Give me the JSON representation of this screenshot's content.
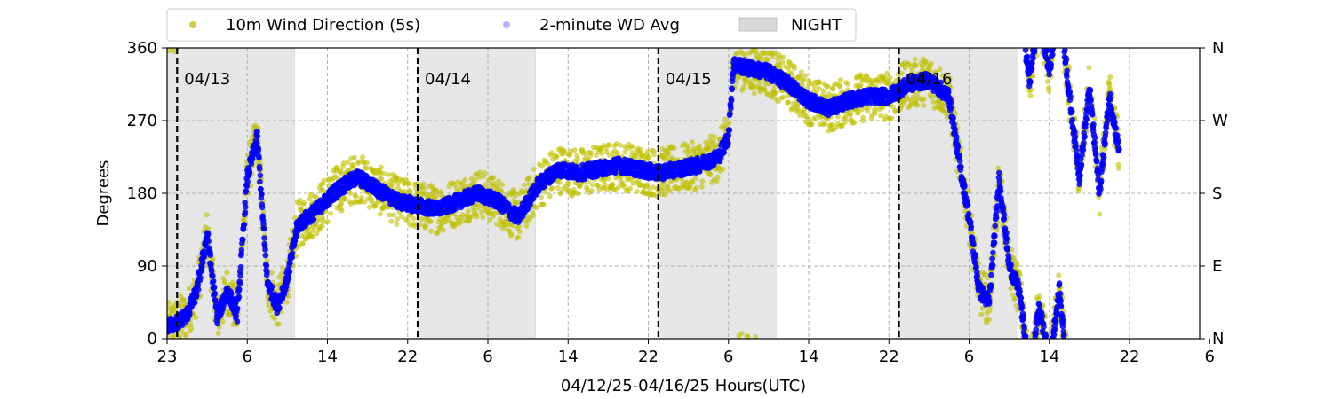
{
  "chart_data": {
    "type": "scatter",
    "title": "",
    "xlabel": "04/12/25-04/16/25  Hours(UTC)",
    "ylabel": "Degrees",
    "x_range_hours_utc": [
      "04/12 23:00",
      "04/17 06:00"
    ],
    "x_tick_labels": [
      "23",
      "6",
      "14",
      "22",
      "6",
      "14",
      "22",
      "6",
      "14",
      "22",
      "6",
      "14",
      "22",
      "6"
    ],
    "ylim": [
      0,
      360
    ],
    "y_ticks": [
      0,
      90,
      180,
      270,
      360
    ],
    "y_tick_labels": [
      "0",
      "90",
      "180",
      "270",
      "360"
    ],
    "y2_tick_labels": [
      "N",
      "E",
      "S",
      "W",
      "N"
    ],
    "grid": true,
    "legend_position": "top-left, above plot",
    "legend": [
      {
        "label": "10m Wind Direction (5s)",
        "marker": "dot",
        "color": "#bfbf00"
      },
      {
        "label": "2-minute WD Avg",
        "marker": "dot",
        "color": "#0000ff"
      },
      {
        "label": "NIGHT",
        "marker": "box",
        "color": "#d9d9d9"
      }
    ],
    "day_separators": [
      {
        "time": "04/13 00:00",
        "label": "04/13"
      },
      {
        "time": "04/14 00:00",
        "label": "04/14"
      },
      {
        "time": "04/15 00:00",
        "label": "04/15"
      },
      {
        "time": "04/16 00:00",
        "label": "04/16"
      }
    ],
    "night_periods": [
      {
        "start": "04/12 23:00",
        "end": "04/13 11:45"
      },
      {
        "start": "04/14 00:00",
        "end": "04/14 11:45"
      },
      {
        "start": "04/15 00:00",
        "end": "04/15 11:45"
      },
      {
        "start": "04/16 00:00",
        "end": "04/16 11:45"
      }
    ],
    "series": [
      {
        "name": "2-minute WD Avg",
        "color": "#0000ff",
        "points": [
          [
            "04/12 23:00",
            15
          ],
          [
            "04/13 00:00",
            20
          ],
          [
            "04/13 01:00",
            30
          ],
          [
            "04/13 02:00",
            60
          ],
          [
            "04/13 03:00",
            130
          ],
          [
            "04/13 04:00",
            25
          ],
          [
            "04/13 05:00",
            60
          ],
          [
            "04/13 06:00",
            30
          ],
          [
            "04/13 07:00",
            200
          ],
          [
            "04/13 08:00",
            250
          ],
          [
            "04/13 09:00",
            70
          ],
          [
            "04/13 10:00",
            40
          ],
          [
            "04/13 11:00",
            75
          ],
          [
            "04/13 12:00",
            140
          ],
          [
            "04/13 14:00",
            160
          ],
          [
            "04/13 16:00",
            185
          ],
          [
            "04/13 18:00",
            200
          ],
          [
            "04/13 20:00",
            185
          ],
          [
            "04/13 22:00",
            170
          ],
          [
            "04/14 00:00",
            165
          ],
          [
            "04/14 02:00",
            160
          ],
          [
            "04/14 04:00",
            170
          ],
          [
            "04/14 06:00",
            180
          ],
          [
            "04/14 08:00",
            170
          ],
          [
            "04/14 10:00",
            150
          ],
          [
            "04/14 12:00",
            190
          ],
          [
            "04/14 14:00",
            210
          ],
          [
            "04/14 16:00",
            205
          ],
          [
            "04/14 18:00",
            210
          ],
          [
            "04/14 20:00",
            215
          ],
          [
            "04/14 22:00",
            210
          ],
          [
            "04/15 00:00",
            205
          ],
          [
            "04/15 02:00",
            210
          ],
          [
            "04/15 04:00",
            215
          ],
          [
            "04/15 06:00",
            225
          ],
          [
            "04/15 07:00",
            250
          ],
          [
            "04/15 07:30",
            340
          ],
          [
            "04/15 09:00",
            335
          ],
          [
            "04/15 11:00",
            330
          ],
          [
            "04/15 13:00",
            315
          ],
          [
            "04/15 15:00",
            295
          ],
          [
            "04/15 17:00",
            285
          ],
          [
            "04/15 19:00",
            295
          ],
          [
            "04/15 21:00",
            300
          ],
          [
            "04/15 23:00",
            300
          ],
          [
            "04/16 01:00",
            315
          ],
          [
            "04/16 03:00",
            320
          ],
          [
            "04/16 05:00",
            300
          ],
          [
            "04/16 06:00",
            220
          ],
          [
            "04/16 07:00",
            150
          ],
          [
            "04/16 08:00",
            60
          ],
          [
            "04/16 09:00",
            45
          ],
          [
            "04/16 10:00",
            200
          ],
          [
            "04/16 11:00",
            90
          ],
          [
            "04/16 12:00",
            60
          ],
          [
            "04/16 13:00",
            320
          ],
          [
            "04/16 14:00",
            40
          ],
          [
            "04/16 15:00",
            330
          ],
          [
            "04/16 16:00",
            60
          ],
          [
            "04/16 17:00",
            300
          ],
          [
            "04/16 18:00",
            200
          ],
          [
            "04/16 19:00",
            310
          ],
          [
            "04/16 20:00",
            180
          ],
          [
            "04/16 21:00",
            300
          ],
          [
            "04/16 22:00",
            230
          ]
        ]
      },
      {
        "name": "10m Wind Direction (5s)",
        "color": "#bfbf00",
        "spread_deg": 30,
        "points": [
          [
            "04/12 23:00",
            15
          ],
          [
            "04/13 00:00",
            20
          ],
          [
            "04/13 01:00",
            30
          ],
          [
            "04/13 02:00",
            60
          ],
          [
            "04/13 03:00",
            130
          ],
          [
            "04/13 04:00",
            25
          ],
          [
            "04/13 05:00",
            60
          ],
          [
            "04/13 06:00",
            30
          ],
          [
            "04/13 07:00",
            200
          ],
          [
            "04/13 08:00",
            250
          ],
          [
            "04/13 09:00",
            70
          ],
          [
            "04/13 10:00",
            40
          ],
          [
            "04/13 11:00",
            75
          ],
          [
            "04/13 12:00",
            140
          ],
          [
            "04/13 14:00",
            160
          ],
          [
            "04/13 16:00",
            185
          ],
          [
            "04/13 18:00",
            200
          ],
          [
            "04/13 20:00",
            185
          ],
          [
            "04/13 22:00",
            170
          ],
          [
            "04/14 00:00",
            165
          ],
          [
            "04/14 02:00",
            160
          ],
          [
            "04/14 04:00",
            170
          ],
          [
            "04/14 06:00",
            180
          ],
          [
            "04/14 08:00",
            170
          ],
          [
            "04/14 10:00",
            150
          ],
          [
            "04/14 12:00",
            190
          ],
          [
            "04/14 14:00",
            210
          ],
          [
            "04/14 16:00",
            205
          ],
          [
            "04/14 18:00",
            210
          ],
          [
            "04/14 20:00",
            215
          ],
          [
            "04/14 22:00",
            210
          ],
          [
            "04/15 00:00",
            205
          ],
          [
            "04/15 02:00",
            210
          ],
          [
            "04/15 04:00",
            215
          ],
          [
            "04/15 06:00",
            225
          ],
          [
            "04/15 07:00",
            250
          ],
          [
            "04/15 07:30",
            340
          ],
          [
            "04/15 09:00",
            335
          ],
          [
            "04/15 11:00",
            330
          ],
          [
            "04/15 13:00",
            315
          ],
          [
            "04/15 15:00",
            295
          ],
          [
            "04/15 17:00",
            285
          ],
          [
            "04/15 19:00",
            295
          ],
          [
            "04/15 21:00",
            300
          ],
          [
            "04/15 23:00",
            300
          ],
          [
            "04/16 01:00",
            315
          ],
          [
            "04/16 03:00",
            320
          ],
          [
            "04/16 05:00",
            300
          ],
          [
            "04/16 06:00",
            220
          ],
          [
            "04/16 07:00",
            150
          ],
          [
            "04/16 08:00",
            60
          ],
          [
            "04/16 09:00",
            45
          ],
          [
            "04/16 10:00",
            200
          ],
          [
            "04/16 11:00",
            90
          ],
          [
            "04/16 12:00",
            60
          ],
          [
            "04/16 13:00",
            320
          ],
          [
            "04/16 14:00",
            40
          ],
          [
            "04/16 15:00",
            330
          ],
          [
            "04/16 16:00",
            60
          ],
          [
            "04/16 17:00",
            300
          ],
          [
            "04/16 18:00",
            200
          ],
          [
            "04/16 19:00",
            310
          ],
          [
            "04/16 20:00",
            180
          ],
          [
            "04/16 21:00",
            300
          ],
          [
            "04/16 22:00",
            230
          ]
        ]
      }
    ]
  }
}
